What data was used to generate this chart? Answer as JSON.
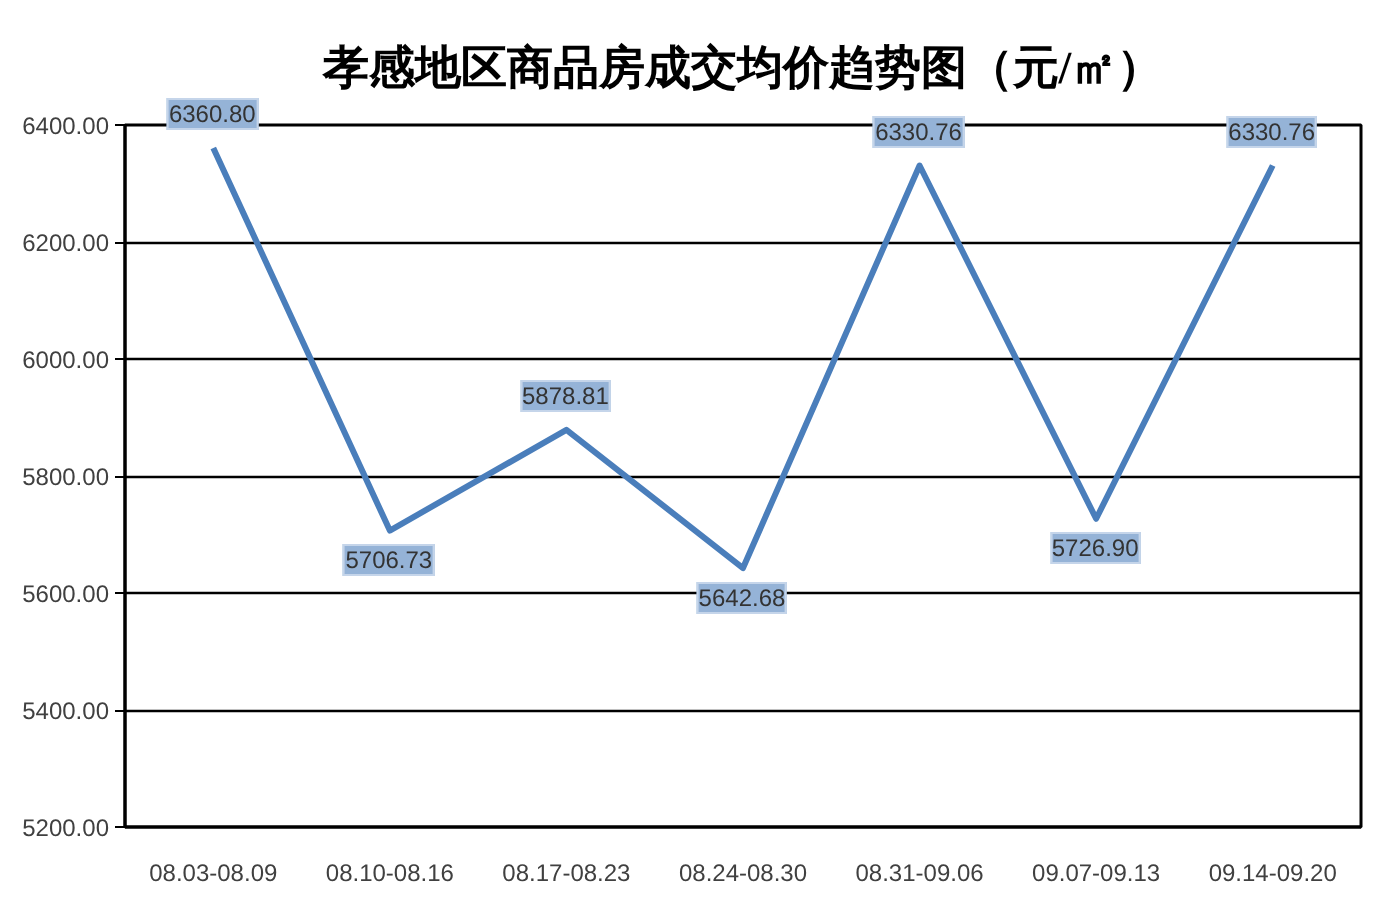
{
  "chart_data": {
    "type": "line",
    "title": "孝感地区商品房成交均价趋势图（元/㎡）",
    "categories": [
      "08.03-08.09",
      "08.10-08.16",
      "08.17-08.23",
      "08.24-08.30",
      "08.31-09.06",
      "09.07-09.13",
      "09.14-09.20"
    ],
    "series": [
      {
        "color": "#4a7ebb",
        "values": [
          6360.8,
          5706.73,
          5878.81,
          5642.68,
          6330.76,
          5726.9,
          6330.76
        ],
        "value_labels": [
          "6360.80",
          "5706.73",
          "5878.81",
          "5642.68",
          "6330.76",
          "5726.90",
          "6330.76"
        ]
      }
    ],
    "ylim": [
      5200,
      6400
    ],
    "yticks": [
      {
        "value": 5200,
        "label": "5200.00"
      },
      {
        "value": 5400,
        "label": "5400.00"
      },
      {
        "value": 5600,
        "label": "5600.00"
      },
      {
        "value": 5800,
        "label": "5800.00"
      },
      {
        "value": 6000,
        "label": "6000.00"
      },
      {
        "value": 6200,
        "label": "6200.00"
      },
      {
        "value": 6400,
        "label": "6400.00"
      }
    ],
    "grid": "y",
    "marker": "none",
    "line_style": "solid"
  }
}
